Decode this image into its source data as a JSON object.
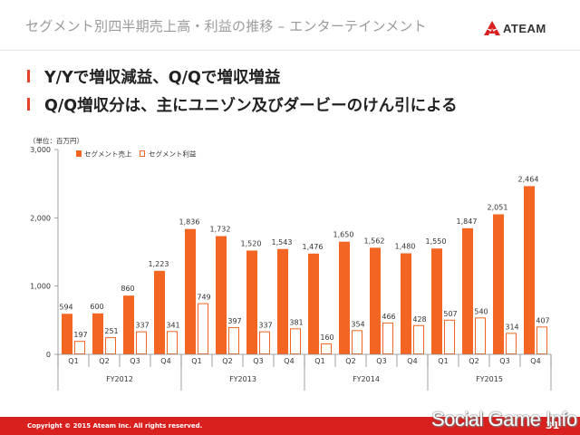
{
  "header": {
    "title": "セグメント別四半期売上高・利益の推移 – エンターテインメント",
    "logo_text": "ATEAM"
  },
  "bullets": [
    "Y/Yで増収減益、Q/Qで増収増益",
    "Q/Q増収分は、主にユニゾン及びダービーのけん引による"
  ],
  "colors": {
    "sales": "#f26522",
    "profit": "#f26522",
    "accent": "#e8422a",
    "footer": "#d8201f"
  },
  "chart_data": {
    "type": "bar",
    "unit_label": "（単位：百万円）",
    "ylim": [
      0,
      3000
    ],
    "yticks": [
      0,
      1000,
      2000,
      3000
    ],
    "ytick_labels": [
      "0",
      "1,000",
      "2,000",
      "3,000"
    ],
    "legend_position": "top-left",
    "categories": [
      "Q1",
      "Q2",
      "Q3",
      "Q4",
      "Q1",
      "Q2",
      "Q3",
      "Q4",
      "Q1",
      "Q2",
      "Q3",
      "Q4",
      "Q1",
      "Q2",
      "Q3",
      "Q4"
    ],
    "groups": [
      {
        "label": "FY2012",
        "count": 4
      },
      {
        "label": "FY2013",
        "count": 4
      },
      {
        "label": "FY2014",
        "count": 4
      },
      {
        "label": "FY2015",
        "count": 4
      }
    ],
    "series": [
      {
        "name": "セグメント売上",
        "style": "filled",
        "values": [
          594,
          600,
          860,
          1223,
          1836,
          1732,
          1520,
          1543,
          1476,
          1650,
          1562,
          1480,
          1550,
          1847,
          2051,
          2464
        ],
        "labels": [
          "594",
          "600",
          "860",
          "1,223",
          "1,836",
          "1,732",
          "1,520",
          "1,543",
          "1,476",
          "1,650",
          "1,562",
          "1,480",
          "1,550",
          "1,847",
          "2,051",
          "2,464"
        ]
      },
      {
        "name": "セグメント利益",
        "style": "outline",
        "values": [
          197,
          251,
          337,
          341,
          749,
          397,
          337,
          381,
          160,
          354,
          466,
          428,
          507,
          540,
          314,
          407
        ],
        "labels": [
          "197",
          "251",
          "337",
          "341",
          "749",
          "397",
          "337",
          "381",
          "160",
          "354",
          "466",
          "428",
          "507",
          "540",
          "314",
          "407"
        ]
      }
    ]
  },
  "footer": {
    "copyright": "Copyright © 2015 Ateam Inc. All rights reserved.",
    "page_number": "31"
  },
  "watermark": "Social Game Info"
}
